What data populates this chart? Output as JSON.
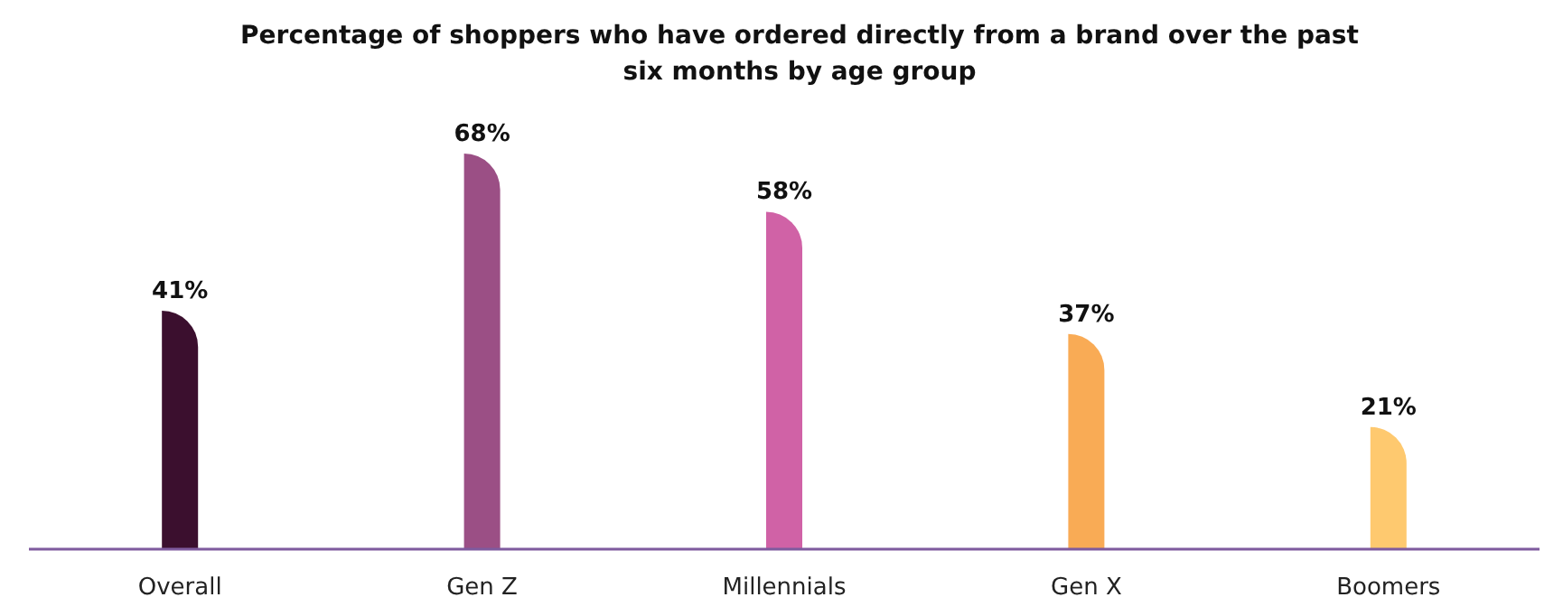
{
  "chart_data": {
    "type": "bar",
    "title": "Percentage of shoppers who have ordered directly from a brand over the past six months by age group",
    "categories": [
      "Overall",
      "Gen Z",
      "Millennials",
      "Gen X",
      "Boomers"
    ],
    "values": [
      41,
      68,
      58,
      37,
      21
    ],
    "colors": [
      "#3b0f2e",
      "#9b4f85",
      "#d062a6",
      "#f9ab55",
      "#fec96f"
    ],
    "value_labels": [
      "41%",
      "68%",
      "58%",
      "37%",
      "21%"
    ]
  }
}
